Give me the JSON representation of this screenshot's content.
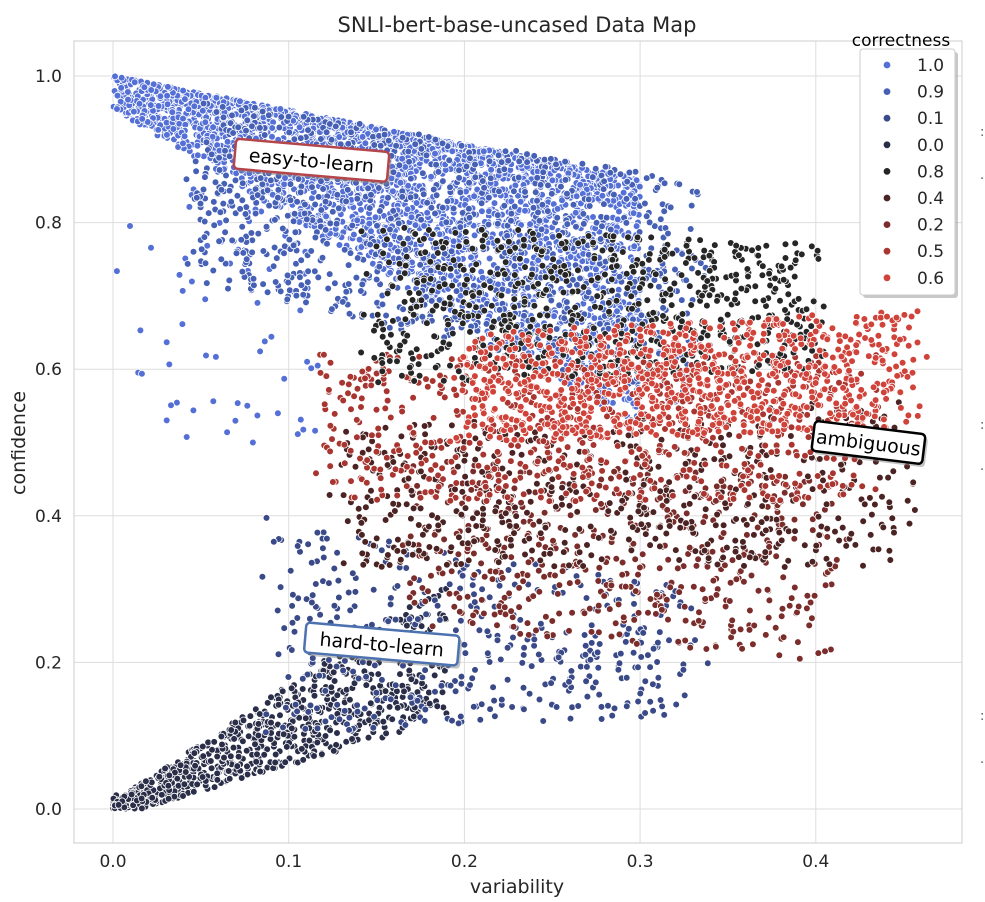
{
  "chart_data": {
    "type": "scatter",
    "title": "SNLI-bert-base-uncased Data Map",
    "xlabel": "variability",
    "ylabel": "confidence",
    "xlim": [
      -0.022,
      0.482
    ],
    "ylim": [
      -0.045,
      1.05
    ],
    "x_ticks": [
      "0.0",
      "0.1",
      "0.2",
      "0.3",
      "0.4"
    ],
    "y_ticks": [
      "0.0",
      "0.2",
      "0.4",
      "0.6",
      "0.8",
      "1.0"
    ],
    "grid": true,
    "legend": {
      "title": "correctness",
      "placement": "top-right",
      "entries": [
        {
          "label": "1.0",
          "color": "#5470d6"
        },
        {
          "label": "0.9",
          "color": "#4560b5"
        },
        {
          "label": "0.1",
          "color": "#3a4a88"
        },
        {
          "label": "0.0",
          "color": "#2a2e48"
        },
        {
          "label": "0.8",
          "color": "#262626"
        },
        {
          "label": "0.4",
          "color": "#4b2323"
        },
        {
          "label": "0.2",
          "color": "#7a2d2a"
        },
        {
          "label": "0.5",
          "color": "#a83530"
        },
        {
          "label": "0.6",
          "color": "#d0433a"
        }
      ]
    },
    "series": [
      {
        "name": "1.0",
        "color": "#5470d6",
        "region": {
          "x": [
            0.0,
            0.3
          ],
          "y_top": [
            1.0,
            0.86
          ],
          "y_bottom": [
            1.0,
            0.62
          ]
        }
      },
      {
        "name": "0.9",
        "color": "#4560b5",
        "region": {
          "x": [
            0.05,
            0.33
          ],
          "y_top": [
            0.97,
            0.86
          ],
          "y_bottom": [
            0.72,
            0.55
          ]
        }
      },
      {
        "name": "0.8",
        "color": "#262626",
        "region": {
          "x": [
            0.15,
            0.4
          ],
          "y_top": [
            0.8,
            0.77
          ],
          "y_bottom": [
            0.58,
            0.6
          ]
        }
      },
      {
        "name": "0.6",
        "color": "#d0433a",
        "region": {
          "x": [
            0.2,
            0.455
          ],
          "y_top": [
            0.65,
            0.68
          ],
          "y_bottom": [
            0.5,
            0.52
          ]
        }
      },
      {
        "name": "0.5",
        "color": "#a83530",
        "region": {
          "x": [
            0.12,
            0.43
          ],
          "y_top": [
            0.62,
            0.62
          ],
          "y_bottom": [
            0.42,
            0.42
          ]
        }
      },
      {
        "name": "0.4",
        "color": "#4b2323",
        "region": {
          "x": [
            0.13,
            0.45
          ],
          "y_top": [
            0.52,
            0.56
          ],
          "y_bottom": [
            0.33,
            0.33
          ]
        }
      },
      {
        "name": "0.2",
        "color": "#7a2d2a",
        "region": {
          "x": [
            0.17,
            0.41
          ],
          "y_top": [
            0.48,
            0.45
          ],
          "y_bottom": [
            0.25,
            0.2
          ]
        }
      },
      {
        "name": "0.1",
        "color": "#3a4a88",
        "region": {
          "x": [
            0.09,
            0.33
          ],
          "y_top": [
            0.4,
            0.3
          ],
          "y_bottom": [
            0.1,
            0.13
          ]
        }
      },
      {
        "name": "0.0",
        "color": "#2a2e48",
        "region": {
          "x": [
            0.0,
            0.2
          ],
          "y_top": [
            0.0,
            0.3
          ],
          "y_bottom": [
            0.0,
            0.08
          ]
        }
      }
    ],
    "annotations": [
      {
        "text": "easy-to-learn",
        "x": 0.113,
        "y": 0.885,
        "border": "#b4464b",
        "rotation": 5
      },
      {
        "text": "ambiguous",
        "x": 0.43,
        "y": 0.5,
        "border": "#000000",
        "rotation": 7
      },
      {
        "text": "hard-to-learn",
        "x": 0.153,
        "y": 0.225,
        "border": "#4c72b0",
        "rotation": 5
      }
    ]
  }
}
